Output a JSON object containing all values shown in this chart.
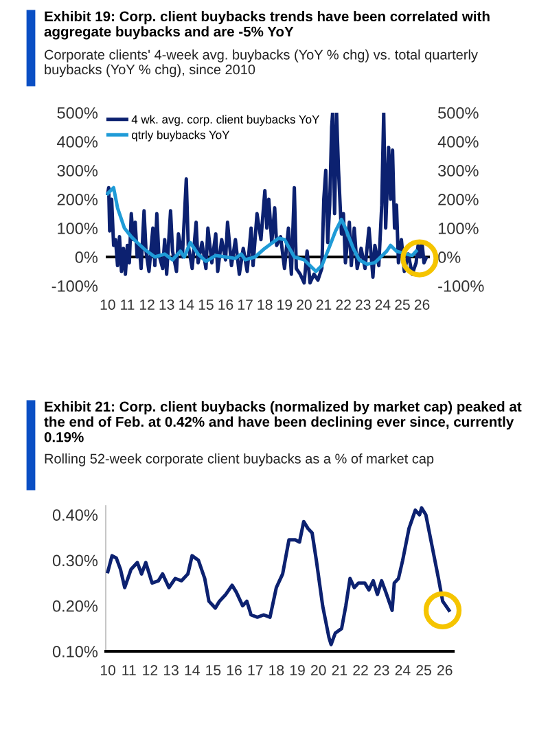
{
  "chart_data": [
    {
      "type": "line",
      "title": "Exhibit 19: Corp. client buybacks trends have been correlated with aggregate buybacks and are -5% YoY",
      "subtitle": "Corporate clients' 4-week avg. buybacks (YoY % chg) vs. total quarterly buybacks (YoY % chg), since 2010",
      "xlim": [
        2009.9,
        2026.4
      ],
      "xticks": [
        {
          "value": 2010,
          "label": "10"
        },
        {
          "value": 2011,
          "label": "11"
        },
        {
          "value": 2012,
          "label": "12"
        },
        {
          "value": 2013,
          "label": "13"
        },
        {
          "value": 2014,
          "label": "14"
        },
        {
          "value": 2015,
          "label": "15"
        },
        {
          "value": 2016,
          "label": "16"
        },
        {
          "value": 2017,
          "label": "17"
        },
        {
          "value": 2018,
          "label": "18"
        },
        {
          "value": 2019,
          "label": "19"
        },
        {
          "value": 2020,
          "label": "20"
        },
        {
          "value": 2021,
          "label": "21"
        },
        {
          "value": 2022,
          "label": "22"
        },
        {
          "value": 2023,
          "label": "23"
        },
        {
          "value": 2024,
          "label": "24"
        },
        {
          "value": 2025,
          "label": "25"
        },
        {
          "value": 2026,
          "label": "26"
        }
      ],
      "ylim": [
        -100,
        500
      ],
      "yticks": [
        {
          "value": -100,
          "label": "-100%"
        },
        {
          "value": 0,
          "label": "0%"
        },
        {
          "value": 100,
          "label": "100%"
        },
        {
          "value": 200,
          "label": "200%"
        },
        {
          "value": 300,
          "label": "300%"
        },
        {
          "value": 400,
          "label": "400%"
        },
        {
          "value": 500,
          "label": "500%"
        }
      ],
      "y2lim": [
        -100,
        500
      ],
      "y2ticks": [
        {
          "value": -100,
          "label": "-100%"
        },
        {
          "value": 0,
          "label": "0%"
        },
        {
          "value": 100,
          "label": "100%"
        },
        {
          "value": 200,
          "label": "200%"
        },
        {
          "value": 300,
          "label": "300%"
        },
        {
          "value": 400,
          "label": "400%"
        },
        {
          "value": 500,
          "label": "500%"
        }
      ],
      "grid": false,
      "legend": "top left",
      "ref_lines": [
        {
          "axis": "y",
          "value": 0,
          "color": "#000000"
        }
      ],
      "series": [
        {
          "name": "4 wk. avg. corp. client buybacks YoY",
          "color": "#0c2170",
          "x": [
            2010.0,
            2010.05,
            2010.1,
            2010.2,
            2010.3,
            2010.4,
            2010.5,
            2010.6,
            2010.7,
            2010.8,
            2010.9,
            2011.0,
            2011.1,
            2011.2,
            2011.3,
            2011.4,
            2011.5,
            2011.6,
            2011.7,
            2011.85,
            2011.95,
            2012.1,
            2012.3,
            2012.4,
            2012.5,
            2012.6,
            2012.8,
            2012.9,
            2013.0,
            2013.2,
            2013.3,
            2013.5,
            2013.6,
            2013.8,
            2014.0,
            2014.1,
            2014.3,
            2014.5,
            2014.6,
            2014.8,
            2015.0,
            2015.1,
            2015.3,
            2015.5,
            2015.6,
            2015.8,
            2016.0,
            2016.1,
            2016.3,
            2016.5,
            2016.7,
            2016.9,
            2017.1,
            2017.3,
            2017.4,
            2017.6,
            2017.8,
            2018.0,
            2018.1,
            2018.2,
            2018.35,
            2018.5,
            2018.6,
            2018.8,
            2019.0,
            2019.2,
            2019.35,
            2019.5,
            2019.6,
            2019.8,
            2020.0,
            2020.15,
            2020.3,
            2020.5,
            2020.7,
            2020.9,
            2021.0,
            2021.1,
            2021.2,
            2021.3,
            2021.4,
            2021.45,
            2021.55,
            2021.65,
            2021.75,
            2021.9,
            2022.0,
            2022.1,
            2022.3,
            2022.4,
            2022.55,
            2022.7,
            2022.9,
            2023.1,
            2023.3,
            2023.5,
            2023.6,
            2023.8,
            2023.95,
            2024.05,
            2024.15,
            2024.3,
            2024.4,
            2024.5,
            2024.6,
            2024.7,
            2024.8,
            2024.95,
            2025.1,
            2025.3,
            2025.5,
            2025.7,
            2025.8,
            2025.9,
            2026.0,
            2026.1,
            2026.2
          ],
          "values": [
            220,
            240,
            90,
            200,
            40,
            60,
            -30,
            70,
            -50,
            30,
            -60,
            40,
            -20,
            150,
            60,
            120,
            0,
            40,
            -40,
            160,
            20,
            -50,
            100,
            -30,
            150,
            10,
            -40,
            60,
            -60,
            160,
            20,
            -50,
            80,
            0,
            270,
            40,
            -40,
            120,
            -20,
            50,
            -40,
            100,
            -20,
            80,
            -50,
            60,
            -10,
            120,
            -30,
            60,
            -60,
            30,
            -50,
            100,
            -30,
            150,
            60,
            230,
            100,
            200,
            50,
            170,
            40,
            70,
            -40,
            100,
            -60,
            240,
            -40,
            -60,
            -90,
            20,
            -90,
            -60,
            -80,
            -40,
            200,
            300,
            50,
            180,
            450,
            500,
            150,
            500,
            300,
            80,
            150,
            -20,
            120,
            -30,
            100,
            -40,
            30,
            -40,
            100,
            -70,
            40,
            -30,
            180,
            500,
            100,
            380,
            200,
            370,
            100,
            180,
            -20,
            60,
            -50,
            10,
            -60,
            -20,
            40,
            0,
            50,
            -20,
            -5
          ]
        },
        {
          "name": "qtrly buybacks YoY",
          "color": "#1f9bd7",
          "x": [
            2010.0,
            2010.3,
            2010.5,
            2010.85,
            2011.2,
            2011.5,
            2011.9,
            2012.4,
            2012.9,
            2013.3,
            2013.7,
            2013.9,
            2014.2,
            2014.6,
            2015.0,
            2015.5,
            2016.0,
            2016.5,
            2016.8,
            2017.0,
            2017.5,
            2018.0,
            2018.4,
            2018.7,
            2019.0,
            2019.5,
            2020.0,
            2020.6,
            2020.9,
            2021.2,
            2021.6,
            2021.9,
            2022.1,
            2022.5,
            2022.8,
            2023.2,
            2023.6,
            2023.9,
            2024.2,
            2024.4,
            2024.7,
            2025.2,
            2025.5,
            2025.7
          ],
          "values": [
            220,
            240,
            170,
            100,
            70,
            50,
            25,
            0,
            10,
            -10,
            20,
            0,
            50,
            10,
            -15,
            5,
            0,
            -5,
            10,
            -10,
            0,
            30,
            50,
            65,
            60,
            0,
            -10,
            -50,
            -30,
            20,
            90,
            130,
            100,
            30,
            -10,
            -25,
            -20,
            0,
            20,
            40,
            20,
            10,
            5,
            20
          ]
        }
      ]
    },
    {
      "type": "line",
      "title": "Exhibit 21: Corp. client buybacks (normalized by market cap) peaked at the end of Feb. at 0.42% and have been declining ever since, currently 0.19%",
      "subtitle": "Rolling 52-week corporate client buybacks as a % of market cap",
      "xlim": [
        2009.9,
        2026.4
      ],
      "xticks": [
        {
          "value": 2010,
          "label": "10"
        },
        {
          "value": 2011,
          "label": "11"
        },
        {
          "value": 2012,
          "label": "12"
        },
        {
          "value": 2013,
          "label": "13"
        },
        {
          "value": 2014,
          "label": "14"
        },
        {
          "value": 2015,
          "label": "15"
        },
        {
          "value": 2016,
          "label": "16"
        },
        {
          "value": 2017,
          "label": "17"
        },
        {
          "value": 2018,
          "label": "18"
        },
        {
          "value": 2019,
          "label": "19"
        },
        {
          "value": 2020,
          "label": "20"
        },
        {
          "value": 2021,
          "label": "21"
        },
        {
          "value": 2022,
          "label": "22"
        },
        {
          "value": 2023,
          "label": "23"
        },
        {
          "value": 2024,
          "label": "24"
        },
        {
          "value": 2025,
          "label": "25"
        },
        {
          "value": 2026,
          "label": "26"
        }
      ],
      "ylim": [
        0.1,
        0.42
      ],
      "yticks": [
        {
          "value": 0.1,
          "label": "0.10%"
        },
        {
          "value": 0.2,
          "label": "0.20%"
        },
        {
          "value": 0.3,
          "label": "0.30%"
        },
        {
          "value": 0.4,
          "label": "0.40%"
        }
      ],
      "grid": false,
      "legend": false,
      "series": [
        {
          "color": "#0c2170",
          "x": [
            2010.0,
            2010.2,
            2010.4,
            2010.6,
            2010.8,
            2011.1,
            2011.4,
            2011.6,
            2011.8,
            2012.1,
            2012.4,
            2012.6,
            2012.9,
            2013.2,
            2013.5,
            2013.8,
            2014.0,
            2014.3,
            2014.6,
            2014.8,
            2015.1,
            2015.3,
            2015.6,
            2015.9,
            2016.1,
            2016.4,
            2016.6,
            2016.8,
            2017.1,
            2017.4,
            2017.7,
            2018.0,
            2018.3,
            2018.6,
            2018.9,
            2019.1,
            2019.3,
            2019.5,
            2019.7,
            2019.9,
            2020.2,
            2020.5,
            2020.6,
            2020.8,
            2021.1,
            2021.3,
            2021.5,
            2021.7,
            2021.9,
            2022.2,
            2022.4,
            2022.6,
            2022.8,
            2023.0,
            2023.2,
            2023.5,
            2023.6,
            2023.8,
            2024.0,
            2024.3,
            2024.6,
            2024.8,
            2024.9,
            2025.1,
            2025.4,
            2025.7,
            2025.9,
            2026.2
          ],
          "values": [
            0.275,
            0.31,
            0.305,
            0.28,
            0.24,
            0.28,
            0.295,
            0.27,
            0.295,
            0.25,
            0.255,
            0.27,
            0.24,
            0.26,
            0.255,
            0.27,
            0.31,
            0.3,
            0.26,
            0.21,
            0.195,
            0.21,
            0.225,
            0.245,
            0.23,
            0.2,
            0.21,
            0.18,
            0.175,
            0.18,
            0.175,
            0.24,
            0.27,
            0.345,
            0.345,
            0.34,
            0.385,
            0.37,
            0.36,
            0.3,
            0.2,
            0.13,
            0.115,
            0.14,
            0.15,
            0.2,
            0.26,
            0.24,
            0.25,
            0.25,
            0.235,
            0.255,
            0.225,
            0.255,
            0.23,
            0.19,
            0.25,
            0.26,
            0.3,
            0.37,
            0.41,
            0.4,
            0.415,
            0.4,
            0.33,
            0.26,
            0.21,
            0.19
          ]
        }
      ]
    }
  ]
}
